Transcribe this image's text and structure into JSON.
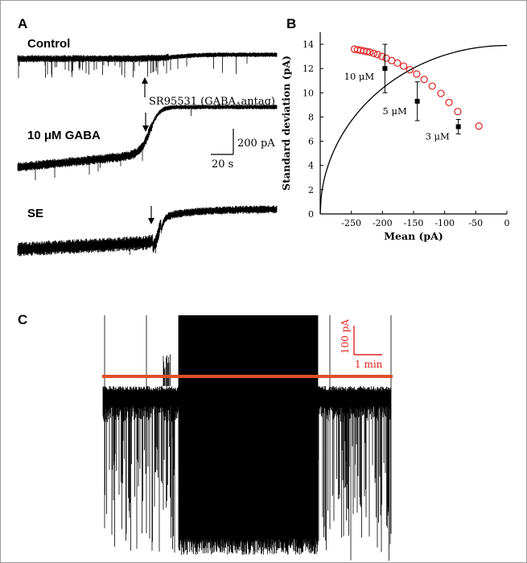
{
  "panels": {
    "a": {
      "letter": "A",
      "traces": [
        {
          "label": "Control",
          "arrow": "up"
        },
        {
          "label": "10 μM GABA",
          "arrow": "down"
        },
        {
          "label": "SE",
          "arrow": "down"
        }
      ],
      "drug_prefix": "SR95531 (GABA",
      "drug_sub": "A",
      "drug_suffix": "antag)",
      "scale_current": "200 pA",
      "scale_time": "20 s"
    },
    "b": {
      "letter": "B"
    },
    "c": {
      "letter": "C",
      "scale_current": "100 pA",
      "scale_time": "1 min"
    }
  },
  "colors": {
    "trace": "#000000",
    "fit_curve": "#000000",
    "open_markers": "#e02020",
    "panel_c_scale": "#e02020",
    "frame": "#9a9a9a"
  },
  "chart_data": [
    {
      "type": "scatter",
      "title": "",
      "xlabel": "Mean (pA)",
      "ylabel": "Standard deviation (pA)",
      "xlim": [
        -300,
        0
      ],
      "ylim": [
        0,
        15
      ],
      "xticks": [
        -250,
        -200,
        -150,
        -100,
        -50,
        0
      ],
      "yticks": [
        0,
        2,
        4,
        6,
        8,
        10,
        12,
        14
      ],
      "grid": false,
      "curve": {
        "x_start": -300,
        "x_end": 0,
        "x_intercept": 0,
        "y_max": 13.9
      },
      "series": [
        {
          "marker": "open-circle",
          "x": [
            -245,
            -240,
            -235,
            -230,
            -225,
            -220,
            -214,
            -208,
            -201,
            -194,
            -185,
            -176,
            -166,
            -156,
            -145,
            -133,
            -120,
            -106,
            -93,
            -79,
            -45
          ],
          "y": [
            13.6,
            13.55,
            13.5,
            13.45,
            13.4,
            13.35,
            13.25,
            13.15,
            13.0,
            12.85,
            12.65,
            12.45,
            12.2,
            11.9,
            11.55,
            11.1,
            10.55,
            9.95,
            9.2,
            8.45,
            7.25
          ]
        },
        {
          "marker": "filled-square",
          "x": [
            -196,
            -144,
            -78
          ],
          "y": [
            12.0,
            9.3,
            7.2
          ],
          "err": [
            2.0,
            1.6,
            0.6
          ],
          "labels": [
            "10 μM",
            "5 μM",
            "3 μM"
          ]
        }
      ]
    }
  ]
}
